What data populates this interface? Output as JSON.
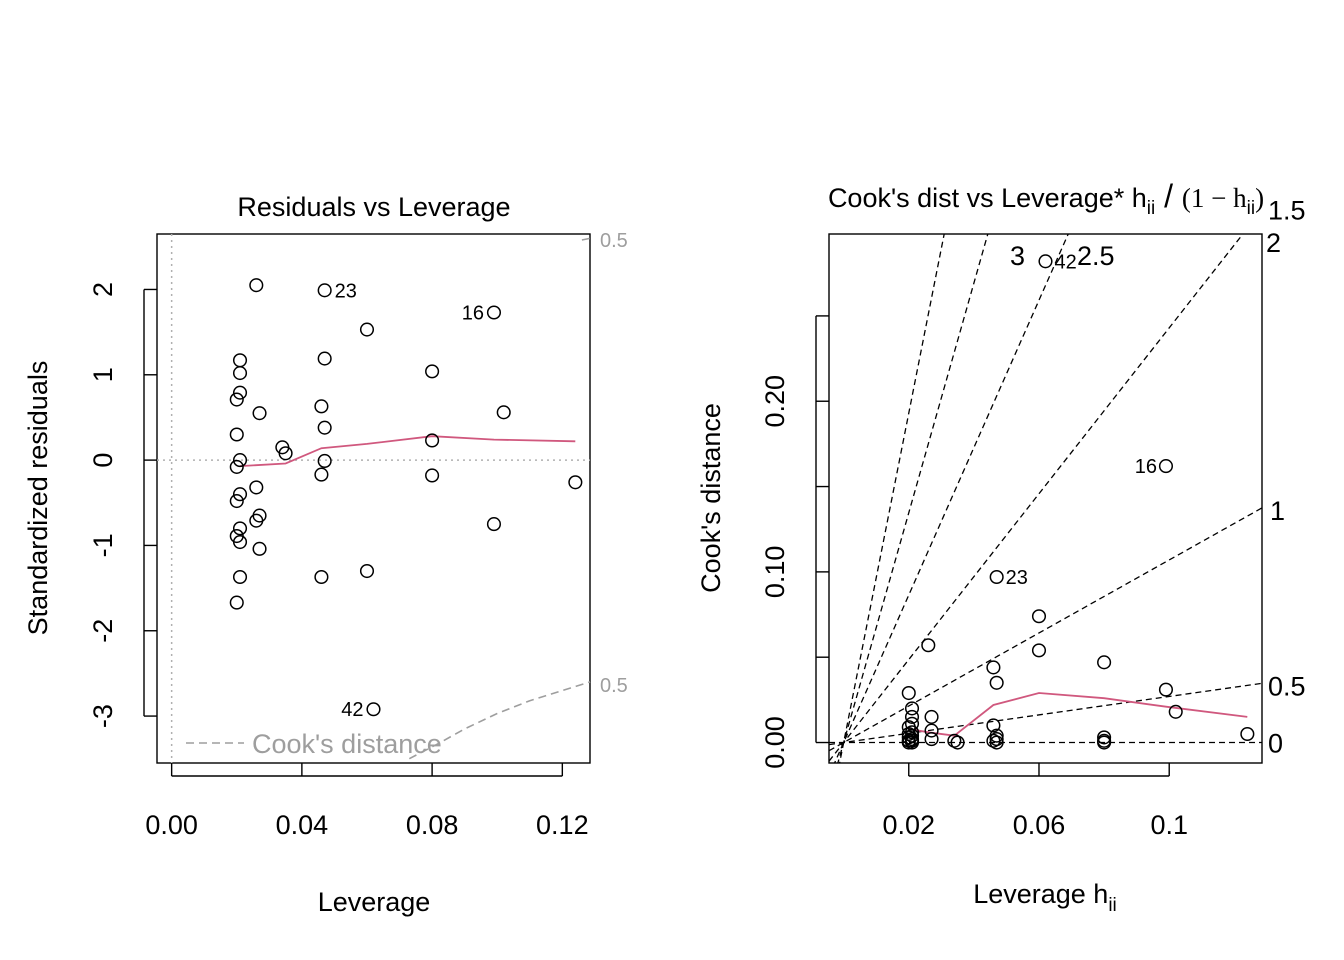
{
  "chart_data": [
    {
      "type": "scatter",
      "title": "Residuals vs Leverage",
      "xlabel": "Leverage",
      "ylabel": "Standardized residuals",
      "xlim": [
        -0.0045,
        0.1285
      ],
      "ylim": [
        -3.55,
        2.65
      ],
      "xticks": [
        0,
        0.04,
        0.08,
        0.12
      ],
      "xtick_labels": [
        "0.00",
        "0.04",
        "0.08",
        "0.12"
      ],
      "yticks": [
        -3,
        -2,
        -1,
        0,
        1,
        2
      ],
      "ytick_labels": [
        "-3",
        "-2",
        "-1",
        "0",
        "1",
        "2"
      ],
      "grid": false,
      "legend": {
        "placement": "bottom-left",
        "label": "Cook's distance"
      },
      "contour_labels": [
        "0.5",
        "0.5"
      ],
      "points": [
        [
          0.026,
          2.05
        ],
        [
          0.047,
          1.99
        ],
        [
          0.099,
          1.73
        ],
        [
          0.06,
          1.53
        ],
        [
          0.021,
          1.17
        ],
        [
          0.047,
          1.19
        ],
        [
          0.021,
          1.02
        ],
        [
          0.08,
          1.04
        ],
        [
          0.021,
          0.79
        ],
        [
          0.02,
          0.71
        ],
        [
          0.027,
          0.55
        ],
        [
          0.046,
          0.63
        ],
        [
          0.102,
          0.56
        ],
        [
          0.047,
          0.38
        ],
        [
          0.02,
          0.3
        ],
        [
          0.034,
          0.15
        ],
        [
          0.035,
          0.08
        ],
        [
          0.08,
          0.23
        ],
        [
          0.021,
          0.0
        ],
        [
          0.047,
          -0.01
        ],
        [
          0.02,
          -0.08
        ],
        [
          0.046,
          -0.17
        ],
        [
          0.08,
          -0.18
        ],
        [
          0.124,
          -0.26
        ],
        [
          0.026,
          -0.32
        ],
        [
          0.021,
          -0.4
        ],
        [
          0.02,
          -0.48
        ],
        [
          0.027,
          -0.65
        ],
        [
          0.026,
          -0.71
        ],
        [
          0.099,
          -0.75
        ],
        [
          0.021,
          -0.8
        ],
        [
          0.02,
          -0.89
        ],
        [
          0.021,
          -0.96
        ],
        [
          0.027,
          -1.04
        ],
        [
          0.06,
          -1.3
        ],
        [
          0.046,
          -1.37
        ],
        [
          0.021,
          -1.37
        ],
        [
          0.02,
          -1.67
        ],
        [
          0.062,
          -2.92
        ]
      ],
      "point_labels": [
        {
          "label": "23",
          "x": 0.047,
          "y": 1.99,
          "side": "right"
        },
        {
          "label": "16",
          "x": 0.099,
          "y": 1.73,
          "side": "left"
        },
        {
          "label": "42",
          "x": 0.062,
          "y": -2.92,
          "side": "left"
        }
      ],
      "smooth": {
        "x": [
          0.021,
          0.035,
          0.046,
          0.06,
          0.08,
          0.099,
          0.124
        ],
        "y": [
          -0.07,
          -0.04,
          0.14,
          0.19,
          0.28,
          0.24,
          0.22
        ]
      },
      "cook_contours": [
        {
          "x": [
            0.073,
            0.082,
            0.09,
            0.1,
            0.11,
            0.1285
          ],
          "y": [
            -3.5,
            -3.32,
            -3.15,
            -2.97,
            -2.82,
            -2.6
          ]
        },
        {
          "x": [
            0.126,
            0.1285
          ],
          "y": [
            2.58,
            2.6
          ]
        }
      ]
    },
    {
      "type": "scatter",
      "title": "Cook's dist vs Leverage* h",
      "title_sub": "ii",
      "title_tail_a": "(1 − h",
      "title_tail_sub": "ii",
      "title_tail_b": ")",
      "xlabel": "Leverage  h",
      "xlabel_sub": "ii",
      "ylabel": "Cook's distance",
      "xlim": [
        -0.0045,
        0.1285
      ],
      "ylim": [
        -0.012,
        0.298
      ],
      "xticks": [
        0.02,
        0.06,
        0.1
      ],
      "xtick_labels": [
        "0.02",
        "0.06",
        "0.1"
      ],
      "yticks": [
        0,
        0.1,
        0.2
      ],
      "ytick_labels": [
        "0.00",
        "0.10",
        "0.20"
      ],
      "yticks_unlabeled": [
        0.05,
        0.15,
        0.25
      ],
      "grid": false,
      "contour_levels": [
        0,
        0.5,
        1,
        1.5,
        2,
        2.5,
        3
      ],
      "contour_labels": [
        "0",
        "0.5",
        "1",
        "1.5",
        "2",
        "2.5",
        "3"
      ],
      "points": [
        [
          0.062,
          0.282
        ],
        [
          0.099,
          0.162
        ],
        [
          0.047,
          0.097
        ],
        [
          0.06,
          0.074
        ],
        [
          0.026,
          0.057
        ],
        [
          0.06,
          0.054
        ],
        [
          0.08,
          0.047
        ],
        [
          0.046,
          0.044
        ],
        [
          0.047,
          0.035
        ],
        [
          0.099,
          0.031
        ],
        [
          0.02,
          0.029
        ],
        [
          0.102,
          0.018
        ],
        [
          0.021,
          0.02
        ],
        [
          0.021,
          0.015
        ],
        [
          0.027,
          0.015
        ],
        [
          0.021,
          0.011
        ],
        [
          0.046,
          0.01
        ],
        [
          0.02,
          0.009
        ],
        [
          0.027,
          0.007
        ],
        [
          0.021,
          0.006
        ],
        [
          0.02,
          0.005
        ],
        [
          0.021,
          0.004
        ],
        [
          0.124,
          0.005
        ],
        [
          0.047,
          0.004
        ],
        [
          0.02,
          0.003
        ],
        [
          0.08,
          0.003
        ],
        [
          0.021,
          0.002
        ],
        [
          0.027,
          0.002
        ],
        [
          0.047,
          0.002
        ],
        [
          0.021,
          0.001
        ],
        [
          0.02,
          0.001
        ],
        [
          0.034,
          0.001
        ],
        [
          0.08,
          0.001
        ],
        [
          0.046,
          0.001
        ],
        [
          0.035,
          0.0
        ],
        [
          0.047,
          0.0
        ],
        [
          0.021,
          0.0
        ],
        [
          0.02,
          0.0
        ],
        [
          0.08,
          0.0
        ]
      ],
      "point_labels": [
        {
          "label": "42",
          "x": 0.062,
          "y": 0.282,
          "side": "right"
        },
        {
          "label": "16",
          "x": 0.099,
          "y": 0.162,
          "side": "left"
        },
        {
          "label": "23",
          "x": 0.047,
          "y": 0.097,
          "side": "right"
        }
      ],
      "smooth": {
        "x": [
          0.02,
          0.026,
          0.034,
          0.046,
          0.06,
          0.08,
          0.099,
          0.124
        ],
        "y": [
          0.008,
          0.006,
          0.004,
          0.022,
          0.029,
          0.026,
          0.021,
          0.015
        ]
      },
      "slopes": [
        0,
        0.27,
        1.07,
        2.43,
        4.32,
        6.73,
        9.65
      ]
    }
  ]
}
